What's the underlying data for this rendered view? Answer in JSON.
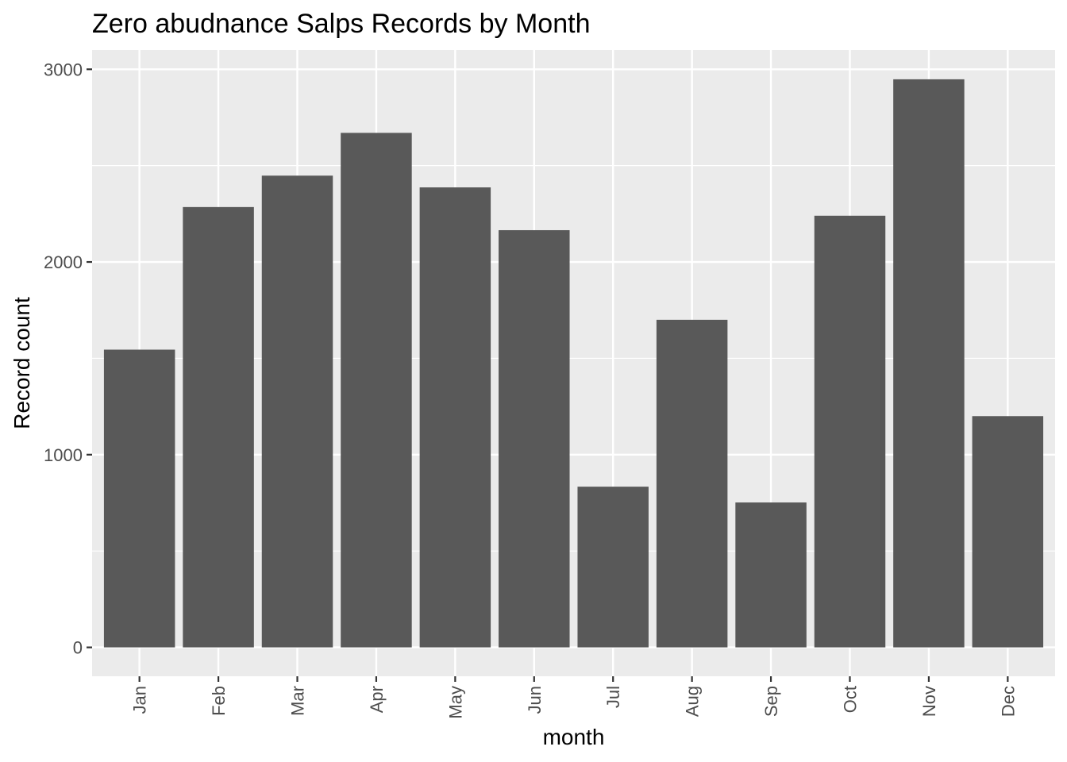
{
  "chart_data": {
    "type": "bar",
    "title": "Zero abudnance Salps Records by Month",
    "xlabel": "month",
    "ylabel": "Record count",
    "categories": [
      "Jan",
      "Feb",
      "Mar",
      "Apr",
      "May",
      "Jun",
      "Jul",
      "Aug",
      "Sep",
      "Oct",
      "Nov",
      "Dec"
    ],
    "values": [
      1545,
      2285,
      2448,
      2670,
      2387,
      2165,
      834,
      1700,
      752,
      2240,
      2948,
      1200
    ],
    "ylim": [
      -150,
      3100
    ],
    "yticks": [
      0,
      1000,
      2000,
      3000
    ],
    "ytick_labels": [
      "0",
      "1000",
      "2000",
      "3000"
    ],
    "grid": true,
    "legend": "none",
    "colors": {
      "bar": "#595959",
      "panel": "#EBEBEB",
      "grid": "#FFFFFF",
      "tick_text": "#4D4D4D",
      "tick_mark": "#333333"
    }
  }
}
